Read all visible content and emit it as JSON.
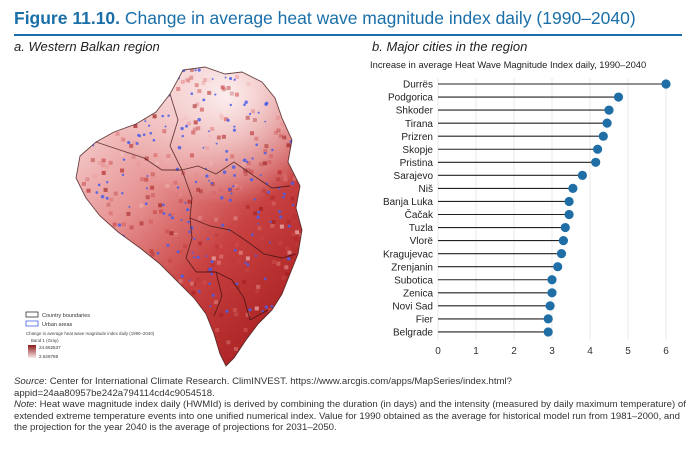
{
  "figure": {
    "number": "Figure 11.10.",
    "title": "Change in average heat wave magnitude index daily (1990–2040)"
  },
  "panel_a": {
    "title": "a. Western Balkan region",
    "legend": {
      "country_boundaries": "Country boundaries",
      "urban_areas": "Urban areas",
      "layer_title": "Change in average heat wave magnitude index daily (1990–2040)",
      "band": "Band 1 (Gray)",
      "max_value": "24.662537",
      "min_value": "2.628786",
      "colors": {
        "high": "#8b1a1a",
        "low": "#fbeaea",
        "urban": "#4a5ee8"
      }
    }
  },
  "panel_b": {
    "title": "b. Major cities in the region"
  },
  "chart_data": {
    "type": "lollipop",
    "title": "Increase in average Heat Wave Magnitude Index daily, 1990–2040",
    "xlim": [
      0,
      6
    ],
    "xticks": [
      0,
      1,
      2,
      3,
      4,
      5,
      6
    ],
    "color": "#1f6ea6",
    "categories": [
      "Durrës",
      "Podgorica",
      "Shkoder",
      "Tirana",
      "Prizren",
      "Skopje",
      "Pristina",
      "Sarajevo",
      "Niš",
      "Banja Luka",
      "Čačak",
      "Tuzla",
      "Vlorë",
      "Kragujevac",
      "Zrenjanin",
      "Subotica",
      "Zenica",
      "Novi Sad",
      "Fier",
      "Belgrade"
    ],
    "values": [
      6.0,
      4.75,
      4.5,
      4.45,
      4.35,
      4.2,
      4.15,
      3.8,
      3.55,
      3.45,
      3.45,
      3.35,
      3.3,
      3.25,
      3.15,
      3.0,
      3.0,
      2.95,
      2.9,
      2.9
    ]
  },
  "source": {
    "label": "Source",
    "text": ": Center for International Climate Research. ClimINVEST. https://www.arcgis.com/apps/MapSeries/index.html?appid=24aa80957be242a794114cd4c9054518."
  },
  "note": {
    "label": "Note",
    "text": ": Heat wave magnitude index daily (HWMId) is derived by combining the duration (in days) and the intensity (measured by daily maximum temperature) of extended extreme temperature events into one unified numerical index. Value for 1990 obtained as the average for historical model run from 1981–2000, and the projection for the year 2040 is the average of projections for 2031–2050."
  }
}
